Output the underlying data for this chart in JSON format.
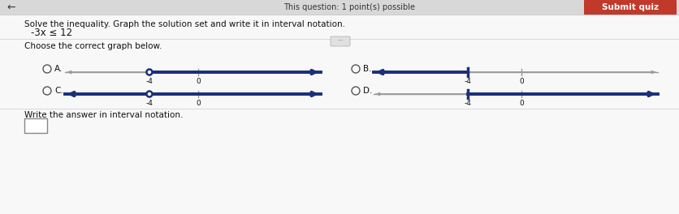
{
  "title_text": "Solve the inequality. Graph the solution set and write it in interval notation.",
  "inequality": "-3x ≤ 12",
  "header_right": "This question: 1 point(s) possible",
  "submit_text": "Submit quiz",
  "choose_text": "Choose the correct graph below.",
  "write_text": "Write the answer in interval notation.",
  "bg_color": "#e8e8e8",
  "panel_color": "#f5f5f5",
  "header_bg": "#d8d8d8",
  "line_color": "#999999",
  "arrow_color": "#1c2f7a",
  "text_color": "#111111",
  "radio_border": "#555555",
  "answer_box_color": "#ffffff",
  "answer_box_border": "#888888",
  "submit_bg": "#c0392b",
  "graphs": [
    {
      "label": "A.",
      "direction": "right",
      "bracket": "open"
    },
    {
      "label": "B.",
      "direction": "left",
      "bracket": "closed"
    },
    {
      "label": "C.",
      "direction": "right",
      "bracket": "open_half"
    },
    {
      "label": "D.",
      "direction": "right",
      "bracket": "closed"
    }
  ]
}
